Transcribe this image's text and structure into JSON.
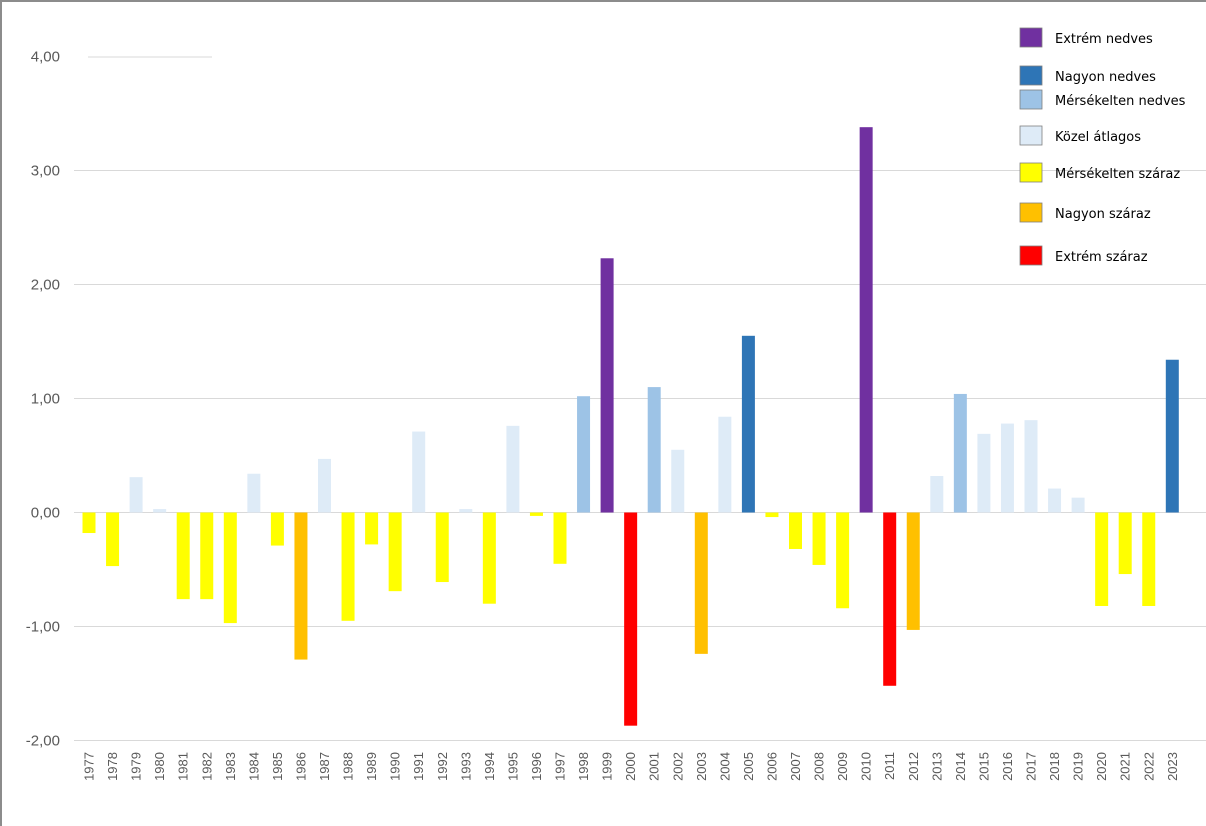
{
  "chart_data": {
    "type": "bar",
    "title": "",
    "xlabel": "",
    "ylabel": "",
    "ylim": [
      -2.0,
      4.0
    ],
    "y_ticks": [
      "4,00",
      "3,00",
      "2,00",
      "1,00",
      "0,00",
      "-1,00",
      "-2,00"
    ],
    "grid": true,
    "legend_position": "top-right",
    "categories": [
      "1977",
      "1978",
      "1979",
      "1980",
      "1981",
      "1982",
      "1983",
      "1984",
      "1985",
      "1986",
      "1987",
      "1988",
      "1989",
      "1990",
      "1991",
      "1992",
      "1993",
      "1994",
      "1995",
      "1996",
      "1997",
      "1998",
      "1999",
      "2000",
      "2001",
      "2002",
      "2003",
      "2004",
      "2005",
      "2006",
      "2007",
      "2008",
      "2009",
      "2010",
      "2011",
      "2012",
      "2013",
      "2014",
      "2015",
      "2016",
      "2017",
      "2018",
      "2019",
      "2020",
      "2021",
      "2022",
      "2023"
    ],
    "values": [
      -0.18,
      -0.47,
      0.31,
      0.03,
      -0.76,
      -0.76,
      -0.97,
      0.34,
      -0.29,
      -1.29,
      0.47,
      -0.95,
      -0.28,
      -0.69,
      0.71,
      -0.61,
      0.03,
      -0.8,
      0.76,
      -0.03,
      -0.45,
      1.02,
      2.23,
      -1.87,
      1.1,
      0.55,
      -1.24,
      0.84,
      1.55,
      -0.04,
      -0.32,
      -0.46,
      -0.84,
      3.38,
      -1.52,
      -1.03,
      0.32,
      1.04,
      0.69,
      0.78,
      0.81,
      0.21,
      0.13,
      -0.82,
      -0.54,
      -0.82,
      1.34
    ],
    "value_classes": [
      "ms",
      "ms",
      "ka",
      "ka",
      "ms",
      "ms",
      "ms",
      "ka",
      "ms",
      "ns",
      "ka",
      "ms",
      "ms",
      "ms",
      "ka",
      "ms",
      "ka",
      "ms",
      "ka",
      "ms",
      "ms",
      "mn",
      "en",
      "es",
      "mn",
      "ka",
      "ns",
      "ka",
      "nn",
      "ms",
      "ms",
      "ms",
      "ms",
      "en",
      "es",
      "ns",
      "ka",
      "mn",
      "ka",
      "ka",
      "ka",
      "ka",
      "ka",
      "ms",
      "ms",
      "ms",
      "nn"
    ],
    "legend": [
      {
        "key": "en",
        "label": "Extrém nedves",
        "color": "#7030a0"
      },
      {
        "key": "nn",
        "label": "Nagyon nedves",
        "color": "#2e75b6"
      },
      {
        "key": "mn",
        "label": "Mérsékelten nedves",
        "color": "#9dc3e6"
      },
      {
        "key": "ka",
        "label": "Közel átlagos",
        "color": "#deebf7"
      },
      {
        "key": "ms",
        "label": "Mérsékelten száraz",
        "color": "#ffff00"
      },
      {
        "key": "ns",
        "label": "Nagyon száraz",
        "color": "#ffc000"
      },
      {
        "key": "es",
        "label": "Extrém száraz",
        "color": "#ff0000"
      }
    ]
  }
}
